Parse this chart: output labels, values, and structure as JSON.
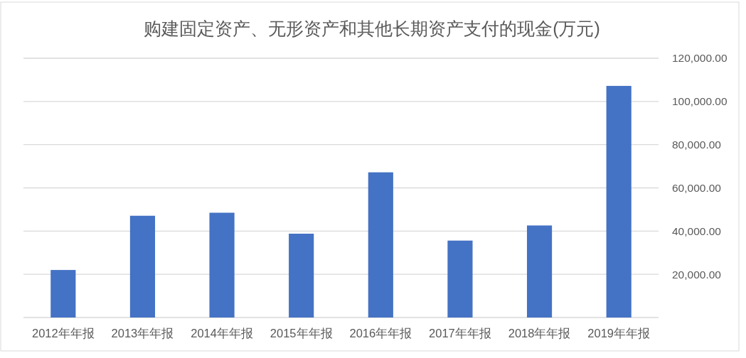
{
  "chart_data": {
    "type": "bar",
    "title": "购建固定资产、无形资产和其他长期资产支付的现金(万元)",
    "categories": [
      "2012年年报",
      "2013年年报",
      "2014年年报",
      "2015年年报",
      "2016年年报",
      "2017年年报",
      "2018年年报",
      "2019年年报"
    ],
    "values": [
      22000,
      47100,
      48500,
      38800,
      67200,
      35600,
      42600,
      107200
    ],
    "color": "#4472c4",
    "ylim": [
      0,
      120000
    ],
    "yticks": [
      {
        "value": 0,
        "label": null
      },
      {
        "value": 20000,
        "label": "20,000.00"
      },
      {
        "value": 40000,
        "label": "40,000.00"
      },
      {
        "value": 60000,
        "label": "60,000.00"
      },
      {
        "value": 80000,
        "label": "80,000.00"
      },
      {
        "value": 100000,
        "label": "100,000.00"
      },
      {
        "value": 120000,
        "label": "120,000.00"
      }
    ],
    "grid": "y"
  }
}
